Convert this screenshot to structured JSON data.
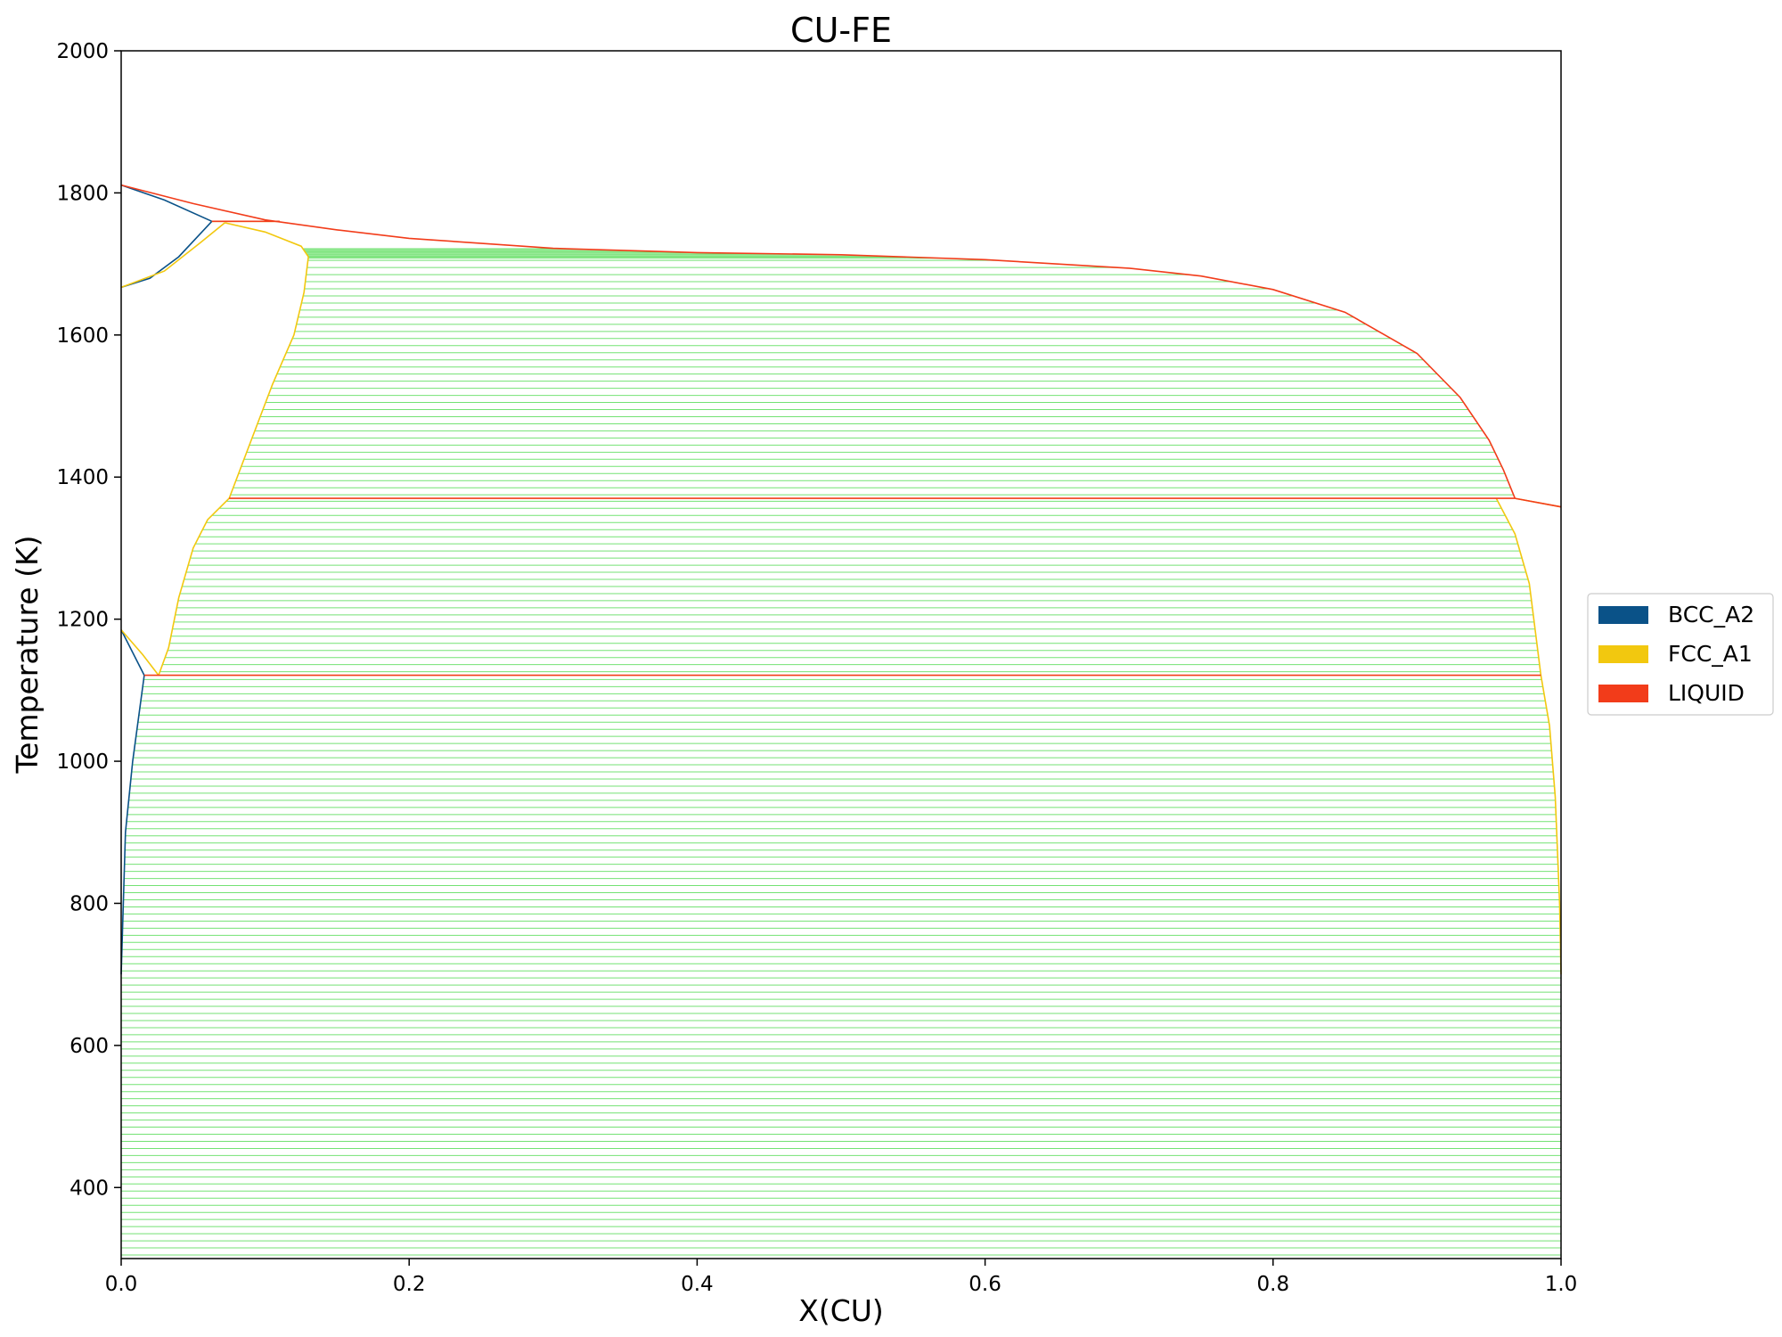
{
  "chart_data": {
    "type": "line",
    "title": "CU-FE",
    "xlabel": "X(CU)",
    "ylabel": "Temperature (K)",
    "xlim": [
      0,
      1
    ],
    "ylim": [
      300,
      2000
    ],
    "xticks": [
      "0.0",
      "0.2",
      "0.4",
      "0.6",
      "0.8",
      "1.0"
    ],
    "yticks": [
      "400",
      "600",
      "800",
      "1000",
      "1200",
      "1400",
      "1600",
      "1800",
      "2000"
    ],
    "grid": false,
    "legend_position": "right-center",
    "legend": [
      {
        "name": "BCC_A2",
        "color": "#0a5288"
      },
      {
        "name": "FCC_A1",
        "color": "#f2c80f"
      },
      {
        "name": "LIQUID",
        "color": "#f23c1a"
      }
    ],
    "tieline_color": "#2ad32a",
    "series": [
      {
        "name": "BCC_A2",
        "color": "#0a5288",
        "segments": [
          [
            [
              0.0,
              1811
            ],
            [
              0.03,
              1790
            ],
            [
              0.063,
              1760
            ]
          ],
          [
            [
              0.0,
              1667
            ],
            [
              0.02,
              1680
            ],
            [
              0.04,
              1710
            ],
            [
              0.063,
              1760
            ]
          ],
          [
            [
              0.0,
              1185
            ],
            [
              0.016,
              1121
            ]
          ],
          [
            [
              0.0,
              700
            ],
            [
              0.003,
              900
            ],
            [
              0.008,
              1000
            ],
            [
              0.016,
              1121
            ]
          ]
        ]
      },
      {
        "name": "FCC_A1",
        "color": "#f2c80f",
        "segments": [
          [
            [
              0.0,
              1667
            ],
            [
              0.03,
              1690
            ],
            [
              0.055,
              1730
            ],
            [
              0.072,
              1758
            ]
          ],
          [
            [
              0.072,
              1758
            ],
            [
              0.1,
              1745
            ],
            [
              0.125,
              1725
            ],
            [
              0.13,
              1710
            ],
            [
              0.127,
              1660
            ],
            [
              0.12,
              1600
            ],
            [
              0.105,
              1530
            ],
            [
              0.09,
              1450
            ],
            [
              0.075,
              1370
            ]
          ],
          [
            [
              0.075,
              1370
            ],
            [
              0.06,
              1340
            ],
            [
              0.05,
              1300
            ],
            [
              0.04,
              1230
            ],
            [
              0.033,
              1160
            ],
            [
              0.026,
              1121
            ]
          ],
          [
            [
              0.0,
              1185
            ],
            [
              0.015,
              1150
            ],
            [
              0.026,
              1121
            ]
          ],
          [
            [
              0.955,
              1370
            ],
            [
              0.968,
              1320
            ],
            [
              0.978,
              1250
            ],
            [
              0.986,
              1121
            ]
          ],
          [
            [
              0.986,
              1121
            ],
            [
              0.992,
              1050
            ],
            [
              0.996,
              950
            ],
            [
              0.999,
              800
            ],
            [
              1.0,
              700
            ]
          ],
          [
            [
              0.968,
              1370
            ],
            [
              1.0,
              1358
            ]
          ],
          [
            [
              0.063,
              1760
            ],
            [
              0.11,
              1760
            ]
          ]
        ]
      },
      {
        "name": "LIQUID",
        "color": "#f23c1a",
        "segments": [
          [
            [
              0.0,
              1811
            ],
            [
              0.05,
              1785
            ],
            [
              0.1,
              1762
            ],
            [
              0.15,
              1748
            ],
            [
              0.2,
              1736
            ],
            [
              0.3,
              1722
            ],
            [
              0.4,
              1716
            ],
            [
              0.5,
              1713
            ],
            [
              0.6,
              1706
            ],
            [
              0.7,
              1694
            ],
            [
              0.75,
              1683
            ],
            [
              0.8,
              1664
            ],
            [
              0.85,
              1632
            ],
            [
              0.9,
              1574
            ],
            [
              0.93,
              1512
            ],
            [
              0.95,
              1452
            ],
            [
              0.96,
              1410
            ],
            [
              0.968,
              1370
            ]
          ],
          [
            [
              0.075,
              1370
            ],
            [
              0.968,
              1370
            ]
          ],
          [
            [
              0.016,
              1121
            ],
            [
              0.986,
              1121
            ]
          ],
          [
            [
              0.968,
              1370
            ],
            [
              1.0,
              1358
            ]
          ],
          [
            [
              0.063,
              1760
            ],
            [
              0.11,
              1760
            ]
          ]
        ]
      }
    ]
  }
}
